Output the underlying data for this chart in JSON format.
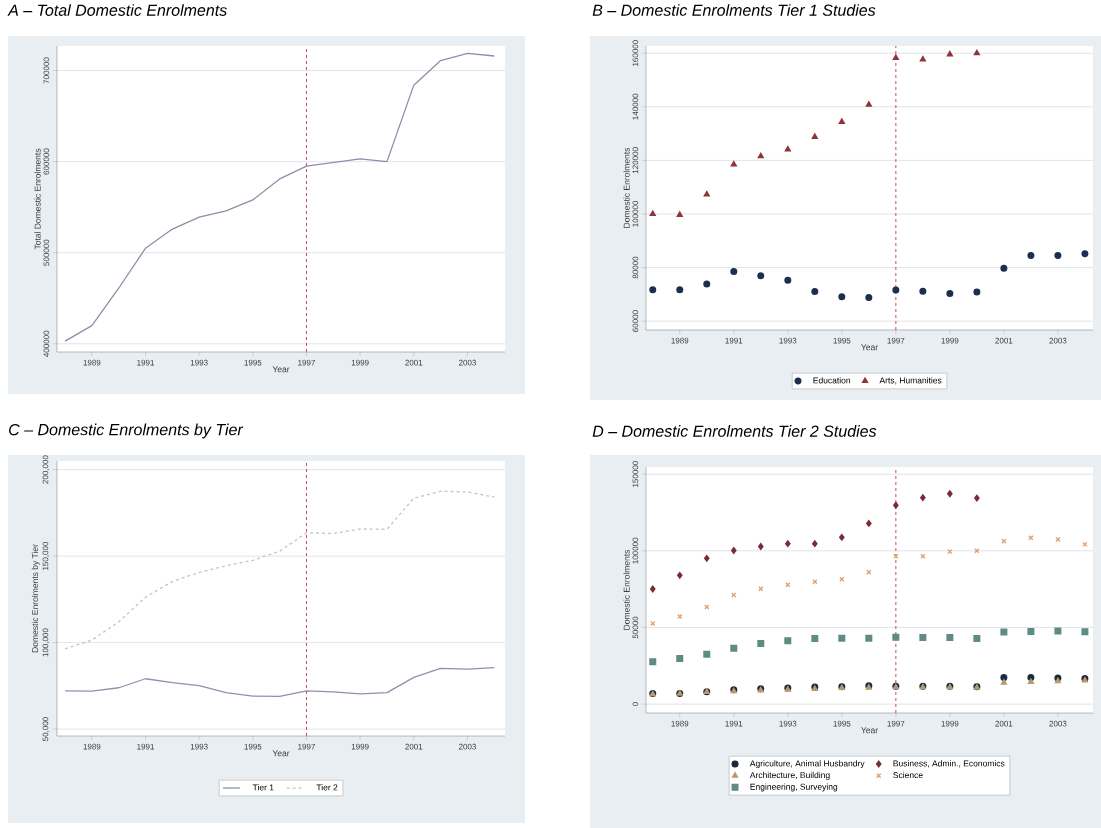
{
  "chart_data": [
    {
      "type": "line",
      "title": "A – Total Domestic Enrolments",
      "xlabel": "Year",
      "ylabel": "Total Domestic Enrolments",
      "x": [
        1988,
        1989,
        1990,
        1991,
        1992,
        1993,
        1994,
        1995,
        1996,
        1997,
        1998,
        1999,
        2000,
        2001,
        2002,
        2003,
        2004
      ],
      "series": [
        {
          "color": "#8a90a8",
          "values": [
            403000,
            420000,
            461000,
            505000,
            526000,
            539000,
            546000,
            558000,
            581000,
            595000,
            599000,
            603000,
            600000,
            684000,
            711000,
            719000,
            716000
          ]
        }
      ],
      "xlim": [
        1987.7,
        2004.4
      ],
      "ylim": [
        391000,
        727000
      ],
      "xticks": [
        1989,
        1991,
        1993,
        1995,
        1997,
        1999,
        2001,
        2003
      ],
      "yticks": [
        400000,
        500000,
        600000,
        700000
      ],
      "grid": "y",
      "marker": "none",
      "line_style": "solid",
      "ref_lines": [
        {
          "axis": "x",
          "value": 1997,
          "color": "#d04a5a",
          "line_style": "dashed"
        }
      ]
    },
    {
      "type": "scatter",
      "title": "B – Domestic Enrolments Tier 1 Studies",
      "xlabel": "Year",
      "ylabel": "Domestic Enrolments",
      "x": [
        1988,
        1989,
        1990,
        1991,
        1992,
        1993,
        1994,
        1995,
        1996,
        1997,
        1998,
        1999,
        2000,
        2001,
        2002,
        2003,
        2004
      ],
      "series": [
        {
          "name": "Education",
          "color": "#1c2f4f",
          "marker": "circle",
          "values": [
            71700,
            71700,
            73900,
            78500,
            76900,
            75300,
            71100,
            69100,
            68800,
            71600,
            71200,
            70300,
            70900,
            79700,
            84500,
            84500,
            85200
          ]
        },
        {
          "name": "Arts, Humanities",
          "color": "#90343c",
          "marker": "triangle",
          "values": [
            100000,
            99700,
            107300,
            118500,
            121600,
            124100,
            128800,
            134400,
            140800,
            158300,
            157700,
            159600,
            160000,
            null,
            null,
            null,
            null
          ]
        }
      ],
      "xlim": [
        1987.75,
        2004.3
      ],
      "ylim": [
        56700,
        162700
      ],
      "xticks": [
        1989,
        1991,
        1993,
        1995,
        1997,
        1999,
        2001,
        2003
      ],
      "yticks": [
        60000,
        80000,
        100000,
        120000,
        140000,
        160000
      ],
      "grid": "y",
      "legend": "bottom",
      "ref_lines": [
        {
          "axis": "x",
          "value": 1997,
          "color": "#d04a5a",
          "line_style": "dashed"
        }
      ]
    },
    {
      "type": "line",
      "title": "C – Domestic Enrolments by Tier",
      "xlabel": "Year",
      "ylabel": "Domestic Enrolments by Tier",
      "x": [
        1988,
        1989,
        1990,
        1991,
        1992,
        1993,
        1994,
        1995,
        1996,
        1997,
        1998,
        1999,
        2000,
        2001,
        2002,
        2003,
        2004
      ],
      "series": [
        {
          "name": "Tier 1",
          "color": "#8a94a8",
          "line_style": "solid",
          "values": [
            72100,
            71900,
            73900,
            79100,
            76900,
            75100,
            71100,
            69100,
            68900,
            72100,
            71500,
            70300,
            71100,
            79900,
            85100,
            84700,
            85500
          ]
        },
        {
          "name": "Tier 2",
          "color": "#c4c4c4",
          "line_style": "dashed",
          "values": [
            96400,
            101400,
            112000,
            126300,
            135300,
            140600,
            144400,
            147600,
            152800,
            163500,
            163100,
            165700,
            165500,
            183500,
            187500,
            187100,
            184100
          ]
        }
      ],
      "xlim": [
        1987.7,
        2004.4
      ],
      "ylim": [
        46000,
        205000
      ],
      "xticks": [
        1989,
        1991,
        1993,
        1995,
        1997,
        1999,
        2001,
        2003
      ],
      "yticks": [
        {
          "value": 50000,
          "label": "50,000"
        },
        {
          "value": 100000,
          "label": "100,000"
        },
        {
          "value": 150000,
          "label": "150,000"
        },
        {
          "value": 200000,
          "label": "200,000"
        }
      ],
      "grid": "y",
      "legend": "bottom",
      "marker": "none",
      "ref_lines": [
        {
          "axis": "x",
          "value": 1997,
          "color": "#d04a5a",
          "line_style": "dashed"
        }
      ]
    },
    {
      "type": "scatter",
      "title": "D – Domestic Enrolments Tier 2 Studies",
      "xlabel": "Year",
      "ylabel": "Domestic Enrolments",
      "x": [
        1988,
        1989,
        1990,
        1991,
        1992,
        1993,
        1994,
        1995,
        1996,
        1997,
        1998,
        1999,
        2000,
        2001,
        2002,
        2003,
        2004
      ],
      "series": [
        {
          "name": "Agriculture, Animal Husbandry",
          "color": "#1c2a40",
          "marker": "circle",
          "values": [
            7000,
            7000,
            8100,
            9300,
            10000,
            10500,
            11200,
            11400,
            11900,
            11600,
            11600,
            11600,
            11400,
            17400,
            17400,
            17000,
            16700
          ]
        },
        {
          "name": "Business, Admin., Economics",
          "color": "#7a2c34",
          "marker": "diamond",
          "values": [
            75100,
            84000,
            95100,
            100200,
            102800,
            104700,
            104700,
            108800,
            117900,
            129800,
            134700,
            137200,
            134400,
            null,
            null,
            null,
            null
          ]
        },
        {
          "name": "Architecture, Building",
          "color": "#b89a6a",
          "marker": "triangle",
          "values": [
            6500,
            6800,
            8000,
            8500,
            9000,
            9500,
            10000,
            10500,
            10800,
            11000,
            11000,
            11000,
            10800,
            14000,
            14500,
            15000,
            15500
          ]
        },
        {
          "name": "Science",
          "color": "#e0a070",
          "marker": "cross",
          "values": [
            52600,
            57200,
            63300,
            71200,
            75300,
            77900,
            79800,
            81400,
            86000,
            96500,
            96500,
            99500,
            100000,
            106300,
            108600,
            107400,
            104200
          ]
        },
        {
          "name": "Engineering, Surveying",
          "color": "#5e8c84",
          "marker": "square",
          "values": [
            27700,
            29800,
            32600,
            36500,
            39500,
            41400,
            42800,
            43000,
            43000,
            43700,
            43500,
            43500,
            42800,
            47000,
            47400,
            47700,
            47200
          ]
        }
      ],
      "xlim": [
        1987.75,
        2004.3
      ],
      "ylim": [
        -5800,
        154700
      ],
      "xticks": [
        1989,
        1991,
        1993,
        1995,
        1997,
        1999,
        2001,
        2003
      ],
      "yticks": [
        0,
        50000,
        100000,
        150000
      ],
      "grid": "y",
      "legend": "bottom",
      "ref_lines": [
        {
          "axis": "x",
          "value": 1997,
          "color": "#d04a5a",
          "line_style": "dashed"
        }
      ]
    }
  ]
}
